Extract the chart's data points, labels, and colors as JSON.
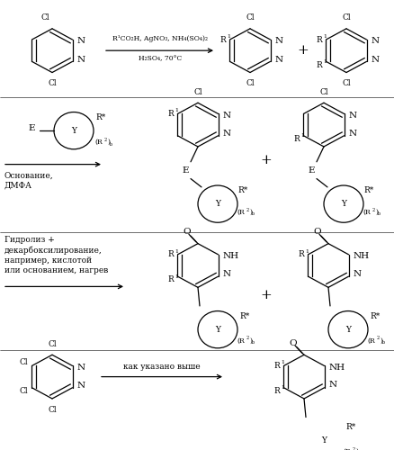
{
  "background_color": "#ffffff",
  "figsize": [
    4.39,
    5.0
  ],
  "dpi": 100,
  "row1_reagent_above": "R¹CO₂H, AgNO₃, NH₄(SO₄)₂",
  "row1_reagent_below": "H₂SO₄, 70°C",
  "row2_cond1": "Основание,",
  "row2_cond2": "ДМФА",
  "row3_cond1": "Гидролиз +",
  "row3_cond2": "декарбоксилирование,",
  "row3_cond3": "например, кислотой",
  "row3_cond4": "или основанием, нагрев",
  "row4_cond": "как указано выше"
}
